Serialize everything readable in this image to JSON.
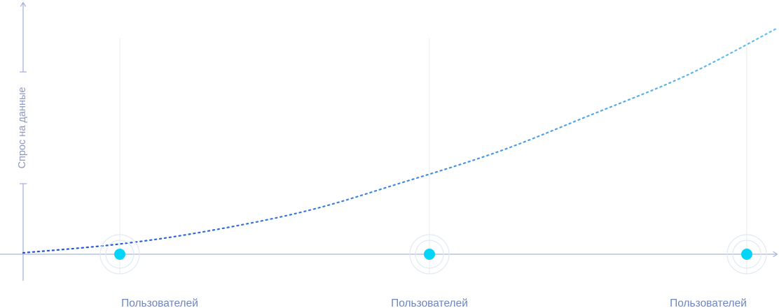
{
  "chart_data": {
    "type": "line",
    "title": "",
    "ylabel": "Спрос на данные",
    "xlabel": "",
    "categories": [
      "Пользователей",
      "Пользователей",
      "Пользователей"
    ],
    "markers": [
      0,
      0,
      0
    ],
    "series": [
      {
        "x": [
          0,
          0.13,
          0.25,
          0.38,
          0.5,
          0.63,
          0.75,
          0.88,
          1.0
        ],
        "y": [
          0,
          0.04,
          0.1,
          0.19,
          0.31,
          0.45,
          0.61,
          0.79,
          1.0
        ]
      }
    ],
    "colors": {
      "curve_start": "#1d4fd8",
      "curve_end": "#62c3ec",
      "marker": "#06d4f8",
      "axis": "#a9b4dc",
      "label": "#6f86c0"
    },
    "grid": false,
    "legend": "none"
  }
}
